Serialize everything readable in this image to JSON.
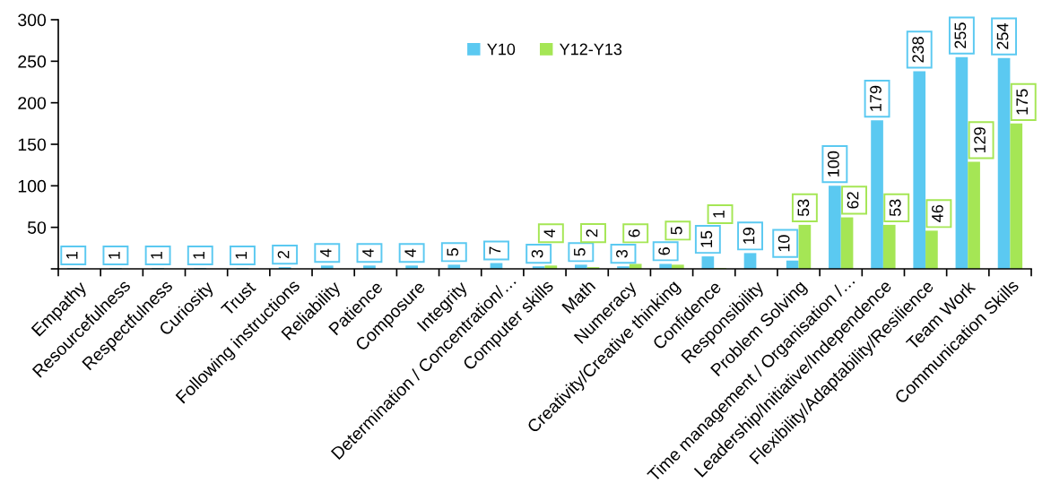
{
  "chart_data": {
    "type": "bar",
    "categories": [
      "Empathy",
      "Resourcefulness",
      "Respectfulness",
      "Curiosity",
      "Trust",
      "Following instructions",
      "Reliability",
      "Patience",
      "Composure",
      "Integrity",
      "Determination / Concentration/…",
      "Computer skills",
      "Math",
      "Numeracy",
      "Creativity/Creative thinking",
      "Confidence",
      "Responsibility",
      "Problem Solving",
      "Time management / Organisation /…",
      "Leadership/Initiative/Independence",
      "Flexibility/Adaptability/Resilience",
      "Team Work",
      "Communication Skills"
    ],
    "series": [
      {
        "name": "Y10",
        "color": "#5bc9f1",
        "values": [
          1,
          1,
          1,
          1,
          1,
          2,
          4,
          4,
          4,
          5,
          7,
          3,
          5,
          3,
          6,
          15,
          19,
          10,
          100,
          179,
          238,
          255,
          254
        ]
      },
      {
        "name": "Y12-Y13",
        "color": "#a5e655",
        "values": [
          null,
          null,
          null,
          null,
          null,
          null,
          null,
          null,
          null,
          null,
          null,
          4,
          2,
          6,
          5,
          1,
          null,
          53,
          62,
          53,
          46,
          129,
          175
        ]
      }
    ],
    "ylim": [
      0,
      300
    ],
    "yticks": [
      {
        "value": 0,
        "label": null
      },
      50,
      100,
      150,
      200,
      250,
      300
    ],
    "data_labels": true,
    "legend": "top"
  }
}
